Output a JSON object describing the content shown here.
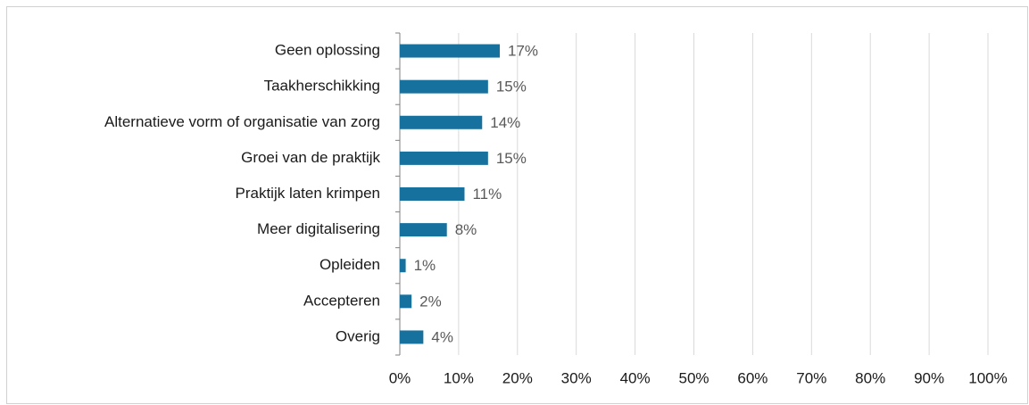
{
  "chart_data": {
    "type": "bar",
    "orientation": "horizontal",
    "categories": [
      "Geen oplossing",
      "Taakherschikking",
      "Alternatieve vorm of organisatie van zorg",
      "Groei van de praktijk",
      "Praktijk laten krimpen",
      "Meer digitalisering",
      "Opleiden",
      "Accepteren",
      "Overig"
    ],
    "values": [
      17,
      15,
      14,
      15,
      11,
      8,
      1,
      2,
      4
    ],
    "value_labels": [
      "17%",
      "15%",
      "14%",
      "15%",
      "11%",
      "8%",
      "1%",
      "2%",
      "4%"
    ],
    "color": "#17719e",
    "xlim": [
      0,
      100
    ],
    "xticks": [
      {
        "value": 0,
        "label": "0%"
      },
      {
        "value": 10,
        "label": "10%"
      },
      {
        "value": 20,
        "label": "20%"
      },
      {
        "value": 30,
        "label": "30%"
      },
      {
        "value": 40,
        "label": "40%"
      },
      {
        "value": 50,
        "label": "50%"
      },
      {
        "value": 60,
        "label": "60%"
      },
      {
        "value": 70,
        "label": "70%"
      },
      {
        "value": 80,
        "label": "80%"
      },
      {
        "value": 90,
        "label": "90%"
      },
      {
        "value": 100,
        "label": "100%"
      }
    ],
    "grid": true
  }
}
